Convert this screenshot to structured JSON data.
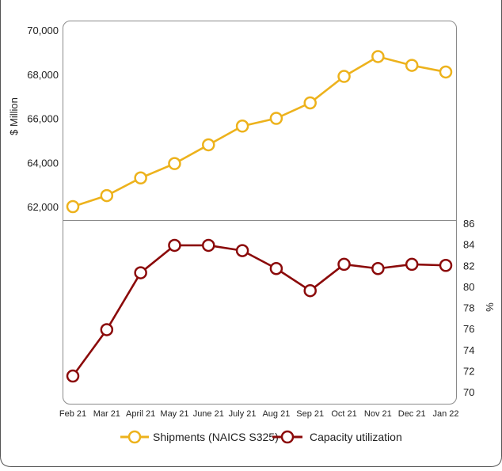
{
  "chart_data": {
    "type": "line",
    "categories": [
      "Feb 21",
      "Mar 21",
      "April 21",
      "May 21",
      "June 21",
      "July 21",
      "Aug 21",
      "Sep 21",
      "Oct 21",
      "Nov 21",
      "Dec 21",
      "Jan 22"
    ],
    "title": "",
    "xlabel": "",
    "panels": [
      {
        "series": [
          {
            "name": "Shipments (NAICS S325)",
            "color": "#EDB21C",
            "values": [
              62000,
              62500,
              63300,
              63950,
              64800,
              65650,
              66000,
              66700,
              67900,
              68800,
              68400,
              68100
            ]
          }
        ],
        "ylabel": "$ Million",
        "ylim": [
          61500,
          70000
        ],
        "yticks": [
          62000,
          64000,
          66000,
          68000,
          70000
        ],
        "ytick_labels": [
          "62,000",
          "64,000",
          "66,000",
          "68,000",
          "70,000"
        ],
        "axis_side": "left"
      },
      {
        "series": [
          {
            "name": "Capacity utilization",
            "color": "#8B0A0A",
            "values": [
              71.5,
              75.9,
              81.3,
              83.9,
              83.9,
              83.4,
              81.7,
              79.6,
              82.1,
              81.7,
              82.1,
              82.0
            ]
          }
        ],
        "ylabel": "%",
        "ylim": [
          70,
          86
        ],
        "yticks": [
          70,
          72,
          74,
          76,
          78,
          80,
          82,
          84,
          86
        ],
        "ytick_labels": [
          "70",
          "72",
          "74",
          "76",
          "78",
          "80",
          "82",
          "84",
          "86"
        ],
        "axis_side": "right"
      }
    ],
    "legend": {
      "position": "bottom-center",
      "items": [
        {
          "label": "Shipments (NAICS S325)",
          "color": "#EDB21C"
        },
        {
          "label": "Capacity utilization",
          "color": "#8B0A0A"
        }
      ]
    },
    "grid": false
  }
}
